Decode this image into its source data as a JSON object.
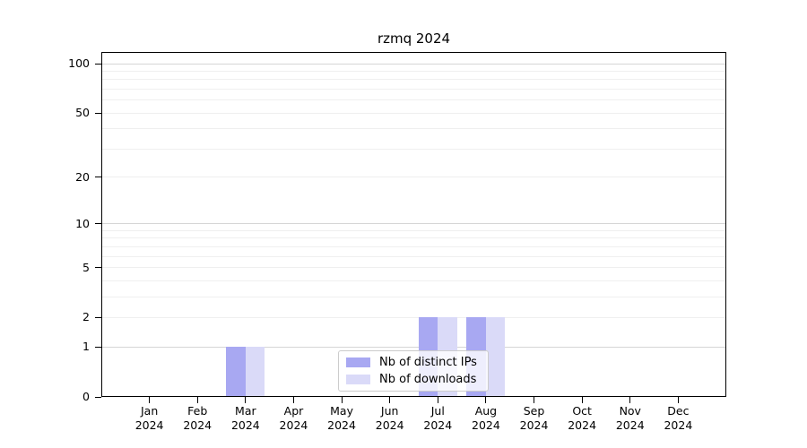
{
  "title": "rzmq 2024",
  "colors": {
    "distinct_ips": "#a8a8f2",
    "downloads": "#dadaf8",
    "grid_minor": "#efefef",
    "grid_major": "#d6d6d6",
    "axis": "#000000",
    "legend_border": "#cccccc"
  },
  "chart_data": {
    "type": "bar",
    "title": "rzmq 2024",
    "xlabel": "",
    "ylabel": "",
    "scale": "log1p",
    "ylim": [
      0,
      118
    ],
    "grid": "horizontal",
    "legend_position": "bottom-center",
    "categories": [
      "Jan 2024",
      "Feb 2024",
      "Mar 2024",
      "Apr 2024",
      "May 2024",
      "Jun 2024",
      "Jul 2024",
      "Aug 2024",
      "Sep 2024",
      "Oct 2024",
      "Nov 2024",
      "Dec 2024"
    ],
    "series": [
      {
        "name": "Nb of distinct IPs",
        "values": [
          0,
          0,
          1,
          0,
          0,
          0,
          2,
          2,
          0,
          0,
          0,
          0
        ]
      },
      {
        "name": "Nb of downloads",
        "values": [
          0,
          0,
          1,
          0,
          0,
          0,
          2,
          2,
          0,
          0,
          0,
          0
        ]
      }
    ],
    "yticks": [
      "0",
      "1",
      "2",
      "5",
      "10",
      "20",
      "50",
      "100"
    ],
    "ytick_values": [
      0,
      1,
      2,
      5,
      10,
      20,
      50,
      100
    ],
    "grid_minor_values": [
      2,
      3,
      4,
      5,
      6,
      7,
      8,
      9,
      20,
      30,
      40,
      50,
      60,
      70,
      80,
      90
    ],
    "grid_major_values": [
      1,
      10,
      100
    ]
  }
}
